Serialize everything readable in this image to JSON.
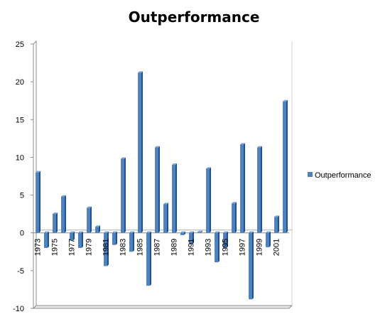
{
  "chart_data": {
    "type": "bar",
    "title": "Outperformance",
    "xlabel": "",
    "ylabel": "",
    "ylim": [
      -10,
      25
    ],
    "yticks": [
      -10,
      -5,
      0,
      5,
      10,
      15,
      20,
      25
    ],
    "grid": false,
    "legend_position": "right",
    "categories": [
      "1973",
      "1974",
      "1975",
      "1976",
      "1977",
      "1978",
      "1979",
      "1980",
      "1981",
      "1982",
      "1983",
      "1984",
      "1985",
      "1986",
      "1987",
      "1988",
      "1989",
      "1990",
      "1991",
      "1992",
      "1993",
      "1994",
      "1995",
      "1996",
      "1997",
      "1998",
      "1999",
      "2000",
      "2001",
      "2002"
    ],
    "labeled_categories": [
      "1973",
      "1975",
      "1977",
      "1979",
      "1981",
      "1983",
      "1985",
      "1987",
      "1989",
      "1991",
      "1993",
      "1995",
      "1997",
      "1999",
      "2001"
    ],
    "series": [
      {
        "name": "Outperformance",
        "color": "#4F81BD",
        "values": [
          8.0,
          -2.0,
          2.5,
          4.8,
          -1.0,
          -2.0,
          3.3,
          0.8,
          -4.4,
          -1.6,
          9.8,
          -2.5,
          21.2,
          -7.0,
          11.3,
          3.8,
          9.0,
          -0.3,
          -1.5,
          0.1,
          8.5,
          -3.9,
          -2.0,
          3.9,
          11.7,
          -8.8,
          11.3,
          -1.9,
          2.1,
          17.4
        ]
      }
    ]
  }
}
